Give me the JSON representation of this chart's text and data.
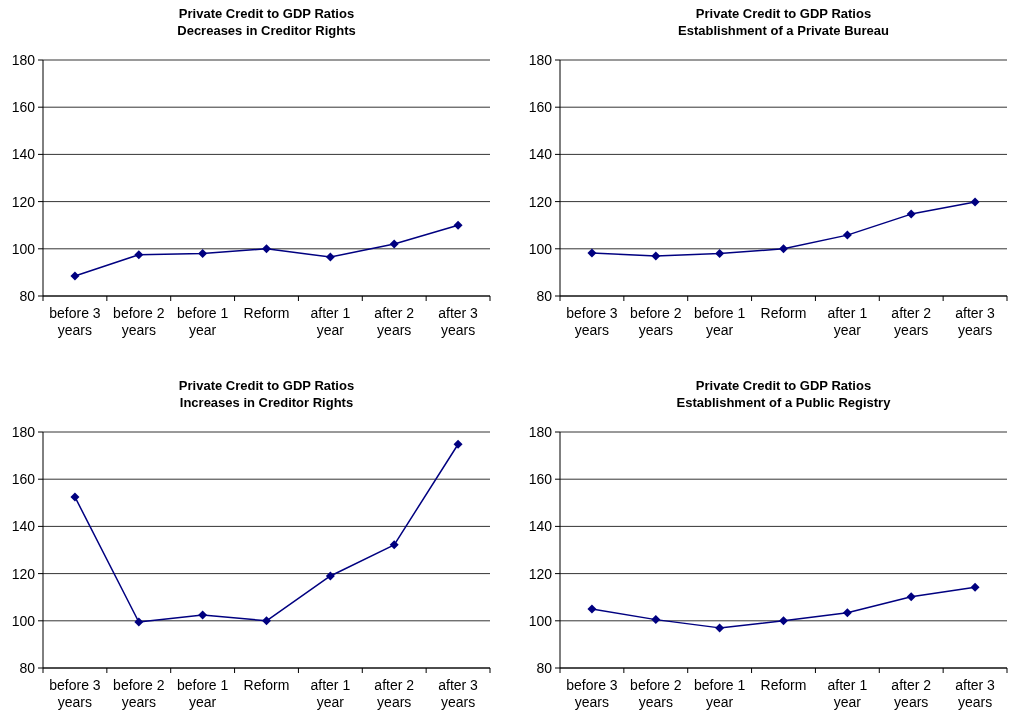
{
  "chart_data": [
    {
      "type": "line",
      "title": "Private Credit to GDP Ratios",
      "subtitle": "Decreases in Creditor Rights",
      "categories": [
        "before 3 years",
        "before 2 years",
        "before 1 year",
        "Reform",
        "after 1 year",
        "after 2 years",
        "after 3 years"
      ],
      "series": [
        {
          "color": "#000080",
          "values": [
            88.5,
            97.5,
            98,
            100,
            96.5,
            102,
            110
          ]
        }
      ],
      "ylim": [
        80,
        180
      ],
      "yticks": [
        80,
        100,
        120,
        140,
        160,
        180
      ],
      "grid": "y",
      "marker": "diamond",
      "line_style": "solid"
    },
    {
      "type": "line",
      "title": "Private Credit to GDP Ratios",
      "subtitle": "Establishment of a Private Bureau",
      "categories": [
        "before 3 years",
        "before 2 years",
        "before 1 year",
        "Reform",
        "after 1 year",
        "after 2 years",
        "after 3 years"
      ],
      "series": [
        {
          "color": "#000080",
          "values": [
            98.2,
            97,
            98,
            100,
            105.8,
            114.7,
            119.8
          ]
        }
      ],
      "ylim": [
        80,
        180
      ],
      "yticks": [
        80,
        100,
        120,
        140,
        160,
        180
      ],
      "grid": "y",
      "marker": "diamond",
      "line_style": "solid"
    },
    {
      "type": "line",
      "title": "Private Credit to GDP Ratios",
      "subtitle": "Increases in Creditor Rights",
      "categories": [
        "before 3 years",
        "before 2 years",
        "before 1 year",
        "Reform",
        "after 1 year",
        "after 2 years",
        "after 3 years"
      ],
      "series": [
        {
          "color": "#000080",
          "values": [
            152.5,
            99.5,
            102.5,
            100,
            119,
            132.2,
            174.8
          ]
        }
      ],
      "ylim": [
        80,
        180
      ],
      "yticks": [
        80,
        100,
        120,
        140,
        160,
        180
      ],
      "grid": "y",
      "marker": "diamond",
      "line_style": "solid"
    },
    {
      "type": "line",
      "title": "Private Credit to GDP Ratios",
      "subtitle": "Establishment of a Public Registry",
      "categories": [
        "before 3 years",
        "before 2 years",
        "before 1 year",
        "Reform",
        "after 1 year",
        "after 2 years",
        "after 3 years"
      ],
      "series": [
        {
          "color": "#000080",
          "values": [
            105,
            100.5,
            97,
            100,
            103.4,
            110.2,
            114.2
          ]
        }
      ],
      "ylim": [
        80,
        180
      ],
      "yticks": [
        80,
        100,
        120,
        140,
        160,
        180
      ],
      "grid": "y",
      "marker": "diamond",
      "line_style": "solid"
    }
  ]
}
